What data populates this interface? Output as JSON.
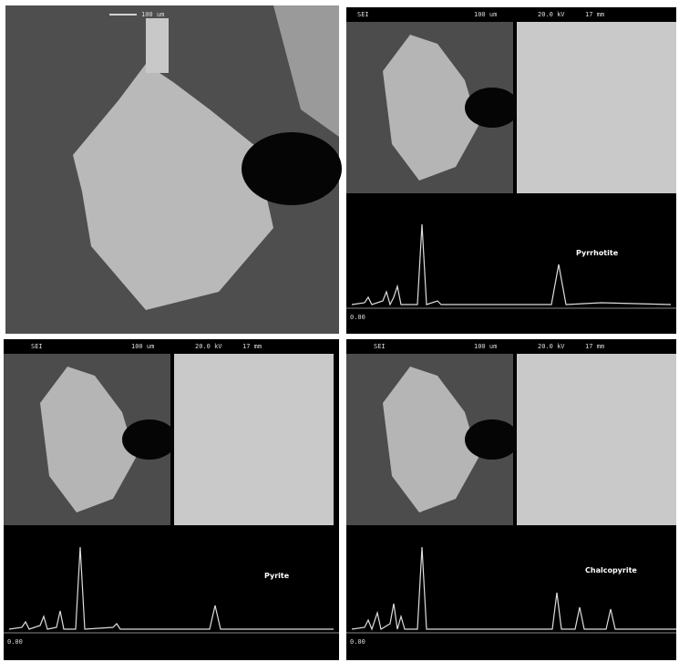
{
  "overview": {
    "scale": "100 um"
  },
  "panels": [
    {
      "header": {
        "mode": "SEI",
        "scale": "100 um",
        "voltage": "20.0 kV",
        "distance": "17 mm"
      },
      "mineral": "Pyrrhotite",
      "axis_start": "0.00"
    },
    {
      "header": {
        "mode": "SEI",
        "scale": "100 um",
        "voltage": "20.0 kV",
        "distance": "17 mm"
      },
      "mineral": "Pyrite",
      "axis_start": "0.00"
    },
    {
      "header": {
        "mode": "SEI",
        "scale": "100 um",
        "voltage": "20.0 kV",
        "distance": "17 mm"
      },
      "mineral": "Chalcopyrite",
      "axis_start": "0.00"
    }
  ]
}
